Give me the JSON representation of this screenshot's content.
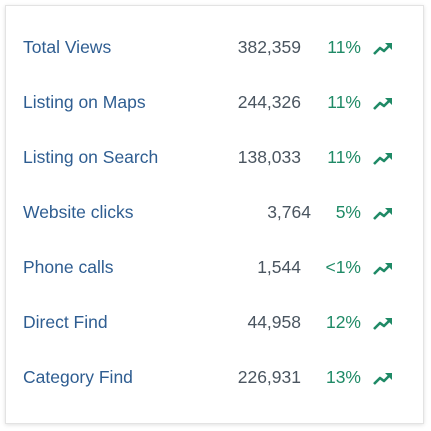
{
  "table": {
    "rows": [
      [
        "Total Views",
        "382,359",
        "11%"
      ],
      [
        "Listing on Maps",
        "244,326",
        "11%"
      ],
      [
        "Listing on Search",
        "138,033",
        "11%"
      ],
      [
        "Website clicks",
        "3,764",
        "5%"
      ],
      [
        "Phone calls",
        "1,544",
        "<1%"
      ],
      [
        "Direct Find",
        "44,958",
        "12%"
      ],
      [
        "Category Find",
        "226,931",
        "13%"
      ]
    ]
  }
}
